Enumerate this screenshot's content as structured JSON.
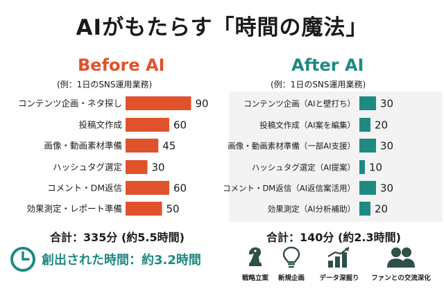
{
  "title": "AIがもたらす「時間の魔法」",
  "colors": {
    "before": "#e0522c",
    "after": "#1f8a82",
    "text": "#1a1a1a"
  },
  "chart_data": [
    {
      "type": "bar",
      "orientation": "horizontal",
      "title": "Before AI",
      "subtitle": "(例：1日のSNS運用業務)",
      "categories": [
        "コンテンツ企画・ネタ探し",
        "投稿文作成",
        "画像・動画素材準備",
        "ハッシュタグ選定",
        "コメント・DM返信",
        "効果測定・レポート準備"
      ],
      "values": [
        90,
        60,
        45,
        30,
        60,
        50
      ],
      "total_label": "合計：335分 (約5.5時間)"
    },
    {
      "type": "bar",
      "orientation": "horizontal",
      "title": "After AI",
      "subtitle": "(例：1日のSNS運用業務)",
      "categories": [
        "コンテンツ企画（AIと壁打ち）",
        "投稿文作成（AI案を編集）",
        "画像・動画素材準備（一部AI支援）",
        "ハッシュタグ選定（AI提案）",
        "コメント・DM返信（AI返信案活用）",
        "効果測定（AI分析補助）"
      ],
      "values": [
        30,
        20,
        30,
        10,
        30,
        20
      ],
      "total_label": "合計：140分 (約2.3時間)"
    }
  ],
  "created_time": "創出された時間：約3.2時間",
  "benefits": [
    {
      "label": "戦略立案",
      "icon": "chess-knight-icon"
    },
    {
      "label": "新規企画",
      "icon": "lightbulb-icon"
    },
    {
      "label": "データ深掘り",
      "icon": "growth-chart-icon"
    },
    {
      "label": "ファンとの交流深化",
      "icon": "people-icon"
    }
  ]
}
